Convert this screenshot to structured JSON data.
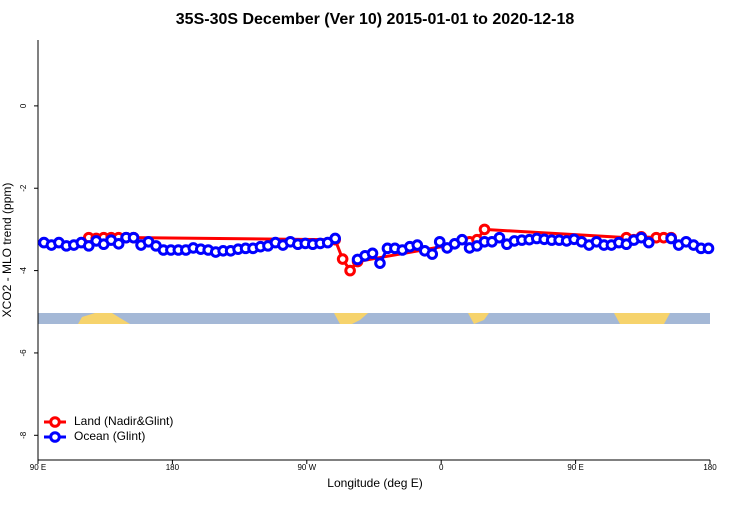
{
  "chart_data": {
    "type": "line",
    "title": "35S-30S December (Ver 10)   2015-01-01 to 2020-12-18",
    "x_label": "Longitude (deg E)",
    "y_label": "XCO2 - MLO trend (ppm)",
    "xlim": [
      90,
      540
    ],
    "ylim": [
      -8.6,
      1.6
    ],
    "xticks": [
      {
        "value": 90,
        "label": "90 E"
      },
      180,
      {
        "value": 270,
        "label": "90 W"
      },
      {
        "value": 360,
        "label": "0"
      },
      {
        "value": 450,
        "label": "90 E"
      },
      {
        "value": 540,
        "label": "180"
      }
    ],
    "yticks": [
      0,
      -2,
      -4,
      -6,
      -8
    ],
    "legend": "bottomleft",
    "series": [
      {
        "name": "Land (Nadir&Glint)",
        "color": "#ff0000",
        "x": [
          124,
          129,
          134,
          139,
          144,
          149,
          154,
          289,
          294,
          299,
          304,
          379,
          384,
          389,
          484,
          489,
          494,
          504,
          509,
          514
        ],
        "values": [
          -3.2,
          -3.22,
          -3.2,
          -3.2,
          -3.2,
          -3.2,
          -3.2,
          -3.25,
          -3.72,
          -4.0,
          -3.78,
          -3.3,
          -3.25,
          -3.0,
          -3.2,
          -3.25,
          -3.18,
          -3.2,
          -3.2,
          -3.2
        ]
      },
      {
        "name": "Ocean (Glint)",
        "color": "#0000ff",
        "x": [
          94,
          99,
          104,
          109,
          114,
          119,
          124,
          129,
          134,
          139,
          144,
          149,
          154,
          159,
          164,
          169,
          174,
          179,
          184,
          189,
          194,
          199,
          204,
          209,
          214,
          219,
          224,
          229,
          234,
          239,
          244,
          249,
          254,
          259,
          264,
          269,
          274,
          279,
          284,
          289,
          294,
          299,
          304,
          309,
          314,
          319,
          324,
          329,
          334,
          339,
          344,
          349,
          354,
          359,
          364,
          369,
          374,
          379,
          384,
          389,
          394,
          399,
          404,
          409,
          414,
          419,
          424,
          429,
          434,
          439,
          444,
          449,
          454,
          459,
          464,
          469,
          474,
          479,
          484,
          489,
          494,
          499,
          504,
          509,
          514,
          519,
          524,
          529,
          534,
          539
        ],
        "values": [
          -3.32,
          -3.38,
          -3.32,
          -3.4,
          -3.38,
          -3.32,
          -3.4,
          -3.28,
          -3.36,
          -3.26,
          -3.35,
          -3.2,
          -3.2,
          -3.38,
          -3.3,
          -3.4,
          -3.5,
          -3.5,
          -3.5,
          -3.5,
          -3.45,
          -3.48,
          -3.5,
          -3.55,
          -3.52,
          -3.52,
          -3.48,
          -3.46,
          -3.46,
          -3.42,
          -3.4,
          -3.32,
          -3.38,
          -3.3,
          -3.36,
          -3.34,
          -3.36,
          -3.34,
          -3.32,
          -3.22,
          null,
          null,
          -3.73,
          -3.64,
          -3.58,
          -3.82,
          -3.46,
          -3.46,
          -3.5,
          -3.42,
          -3.38,
          -3.52,
          -3.6,
          -3.3,
          -3.45,
          -3.35,
          -3.25,
          -3.45,
          -3.4,
          -3.3,
          -3.3,
          -3.2,
          -3.36,
          -3.28,
          -3.26,
          -3.25,
          -3.22,
          -3.24,
          -3.26,
          -3.26,
          -3.28,
          -3.24,
          -3.3,
          -3.38,
          -3.3,
          -3.38,
          -3.38,
          -3.32,
          -3.36,
          -3.26,
          -3.2,
          -3.32,
          null,
          null,
          -3.22,
          -3.38,
          -3.3,
          -3.38,
          -3.46,
          -3.46
        ]
      }
    ]
  }
}
